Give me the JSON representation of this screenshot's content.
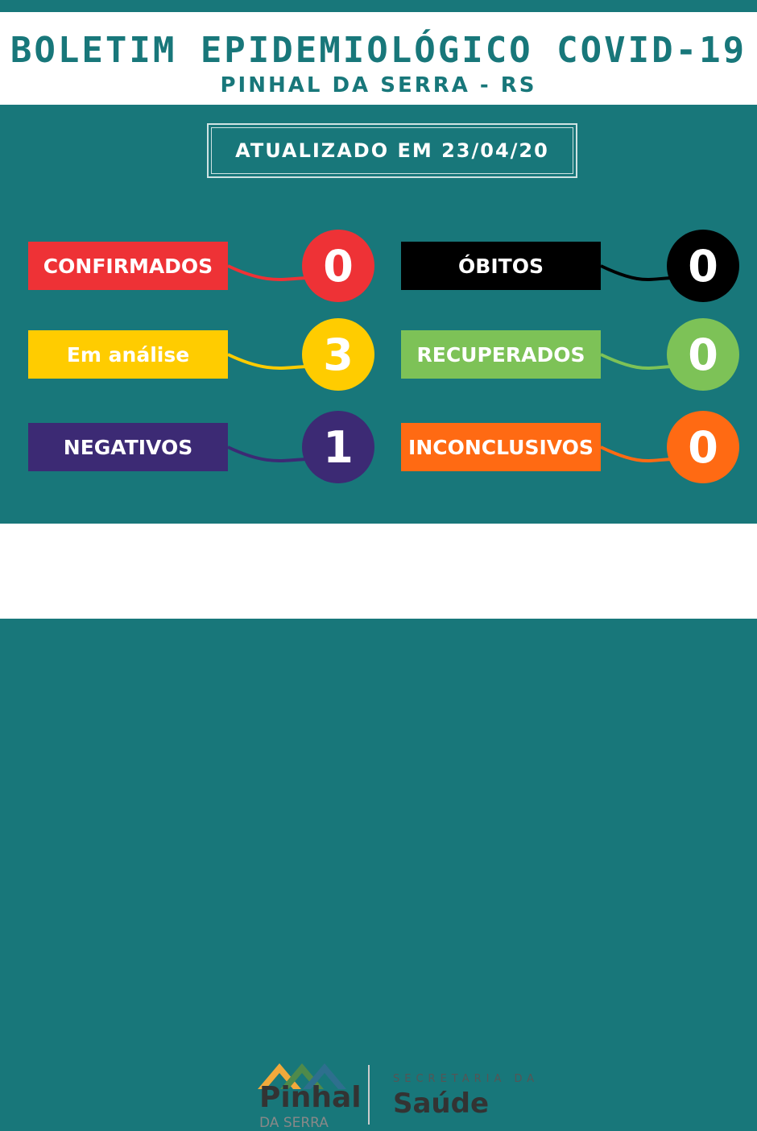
{
  "header": {
    "title": "BOLETIM EPIDEMIOLÓGICO COVID-19",
    "subtitle": "PINHAL DA SERRA - RS"
  },
  "updated": "ATUALIZADO EM 23/04/20",
  "stats": [
    {
      "label": "CONFIRMADOS",
      "value": "0",
      "color": "#ee3236"
    },
    {
      "label": "Em análise",
      "value": "3",
      "color": "#ffcc00"
    },
    {
      "label": "NEGATIVOS",
      "value": "1",
      "color": "#3c2a74"
    },
    {
      "label": "ÓBITOS",
      "value": "0",
      "color": "#000000"
    },
    {
      "label": "RECUPERADOS",
      "value": "0",
      "color": "#7dc257"
    },
    {
      "label": "INCONCLUSIVOS",
      "value": "0",
      "color": "#ff6a13"
    }
  ],
  "footer": {
    "logo_main": "Pinhal",
    "logo_sub": "DA SERRA",
    "dept_top": "SECRETARIA DA",
    "dept_main": "Saúde"
  },
  "colors": {
    "teal": "#18777a"
  }
}
